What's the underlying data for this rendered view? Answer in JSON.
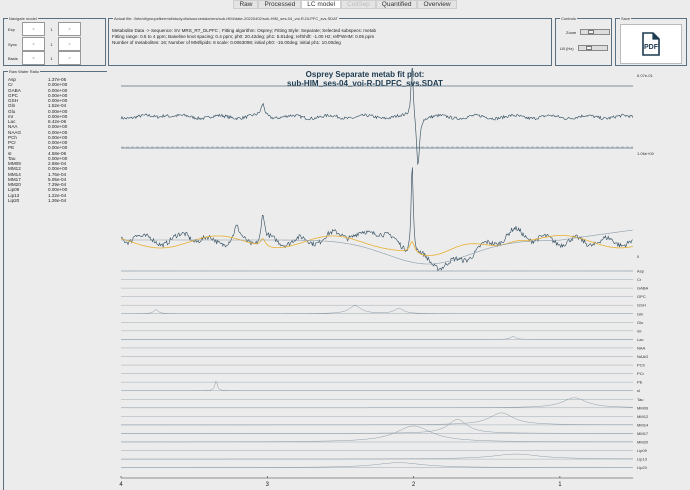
{
  "tabs": [
    {
      "label": "Raw"
    },
    {
      "label": "Processed"
    },
    {
      "label": "LC model",
      "selected": true
    },
    {
      "label": "CoilSep",
      "disabled": true
    },
    {
      "label": "Quantified"
    },
    {
      "label": "Overview"
    }
  ],
  "navigate": {
    "title": "Navigate model",
    "rows": [
      {
        "label": "Exp",
        "prev": "<",
        "value": "1",
        "next": ">"
      },
      {
        "label": "Sync",
        "prev": "<",
        "value": "1",
        "next": ">"
      },
      {
        "label": "Basis",
        "prev": "<",
        "value": "1",
        "next": ">"
      }
    ]
  },
  "info": {
    "title": "Actual file: /Info/cifgroupsfkermid/study.dta/sourcedata/mrs/sub-HIM/date-20220402/sub-HIM_ses-04_voi-R-DLPFC_svs.SDAT",
    "lines": [
      "Metabolite Data -> Sequence: SV MRS_RT_DLPFC ; Fitting algorithm: Osprey; Fitting Style: Separate; Selected subspecs: metab",
      "Fitting range: 0.5 to 4 ppm; Baseline knot spacing: 0.4 ppm; ph0: 20.42deg; ph1: 5.81deg; refShift: -1.00 Hz; refFWHM: 0.05 ppm",
      "Number of metabolites: 16; Number of MM/lipids: 8 scale: 0.0063098; initial ph0: -15.00deg; initial ph1: 10.00deg"
    ]
  },
  "controls": {
    "title": "Controls",
    "zoom_label": "Zoom",
    "lb_label": "LB (Hz)",
    "zoom_value": 0.3,
    "lb_value": 0.3
  },
  "save": {
    "title": "Save",
    "button": "PDF"
  },
  "ratio": {
    "title": "Raw Water Ratio",
    "items": [
      {
        "name": "Asp",
        "value": "1.37e-05"
      },
      {
        "name": "Cr",
        "value": "0.00e+00"
      },
      {
        "name": "GABA",
        "value": "0.00e+00"
      },
      {
        "name": "GPC",
        "value": "0.00e+00"
      },
      {
        "name": "GSH",
        "value": "0.00e+00"
      },
      {
        "name": "Gln",
        "value": "1.52e-04"
      },
      {
        "name": "Glu",
        "value": "0.00e+00"
      },
      {
        "name": "mI",
        "value": "0.00e+00"
      },
      {
        "name": "Lac",
        "value": "8.42e-06"
      },
      {
        "name": "NAA",
        "value": "0.00e+00"
      },
      {
        "name": "NAAG",
        "value": "0.00e+00"
      },
      {
        "name": "PCh",
        "value": "0.00e+00"
      },
      {
        "name": "PCr",
        "value": "0.00e+00"
      },
      {
        "name": "PE",
        "value": "0.00e+00"
      },
      {
        "name": "sI",
        "value": "4.58e-06"
      },
      {
        "name": "Tau",
        "value": "0.00e+00"
      },
      {
        "name": "MM09",
        "value": "2.68e-04"
      },
      {
        "name": "MM12",
        "value": "0.00e+00"
      },
      {
        "name": "MM14",
        "value": "1.76e-04"
      },
      {
        "name": "MM17",
        "value": "5.05e-04"
      },
      {
        "name": "MM20",
        "value": "7.29e-04"
      },
      {
        "name": "Lip09",
        "value": "0.00e+00"
      },
      {
        "name": "Lip13",
        "value": "1.22e-04"
      },
      {
        "name": "Lip20",
        "value": "1.26e-04"
      }
    ]
  },
  "plot": {
    "title_line1": "Osprey Separate metab fit plot:",
    "title_line2": "sub-HIM_ses-04_voi-R-DLPFC_svs.SDAT",
    "residual_max_label": "6.07e-01",
    "fit_max_label": "1.06e+00",
    "zero_label": "0",
    "row_labels": [
      "Asp",
      "Cr",
      "GABA",
      "GPC",
      "GSH",
      "Gln",
      "Glu",
      "mI",
      "Lac",
      "NAA",
      "NAAG",
      "PCh",
      "PCr",
      "PE",
      "sI",
      "Tau",
      "MM09",
      "MM12",
      "MM14",
      "MM17",
      "MM20",
      "Lip09",
      "Lip13",
      "Lip20"
    ],
    "x_ticks": [
      "4",
      "3",
      "2",
      "1"
    ],
    "x_reversed": true,
    "colors": {
      "data": "#2d4a5c",
      "fit": "#e8b030",
      "baseline": "#8a9aa6",
      "residual": "#2d4a5c"
    }
  }
}
